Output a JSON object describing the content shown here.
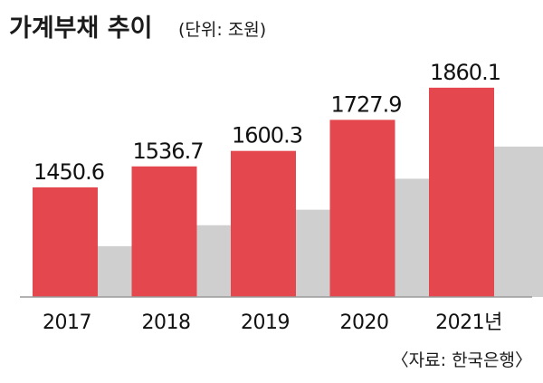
{
  "chart_data": {
    "type": "bar",
    "title": "가계부채 추이",
    "unit_note": "(단위: 조원)",
    "categories": [
      "2017",
      "2018",
      "2019",
      "2020",
      "2021년"
    ],
    "values": [
      1450.6,
      1536.7,
      1600.3,
      1727.9,
      1860.1
    ],
    "value_labels": [
      "1450.6",
      "1536.7",
      "1600.3",
      "1727.9",
      "1860.1"
    ],
    "source": "〈자료: 한국은행〉",
    "xlabel": "",
    "ylabel": "",
    "ylim": [
      1000,
      1960
    ],
    "grid": false,
    "legend": "none",
    "colors": {
      "bar": "#e5474f",
      "shadow": "#cfcfcf",
      "baseline": "#9a9a9a",
      "text": "#1a1a1a"
    }
  }
}
